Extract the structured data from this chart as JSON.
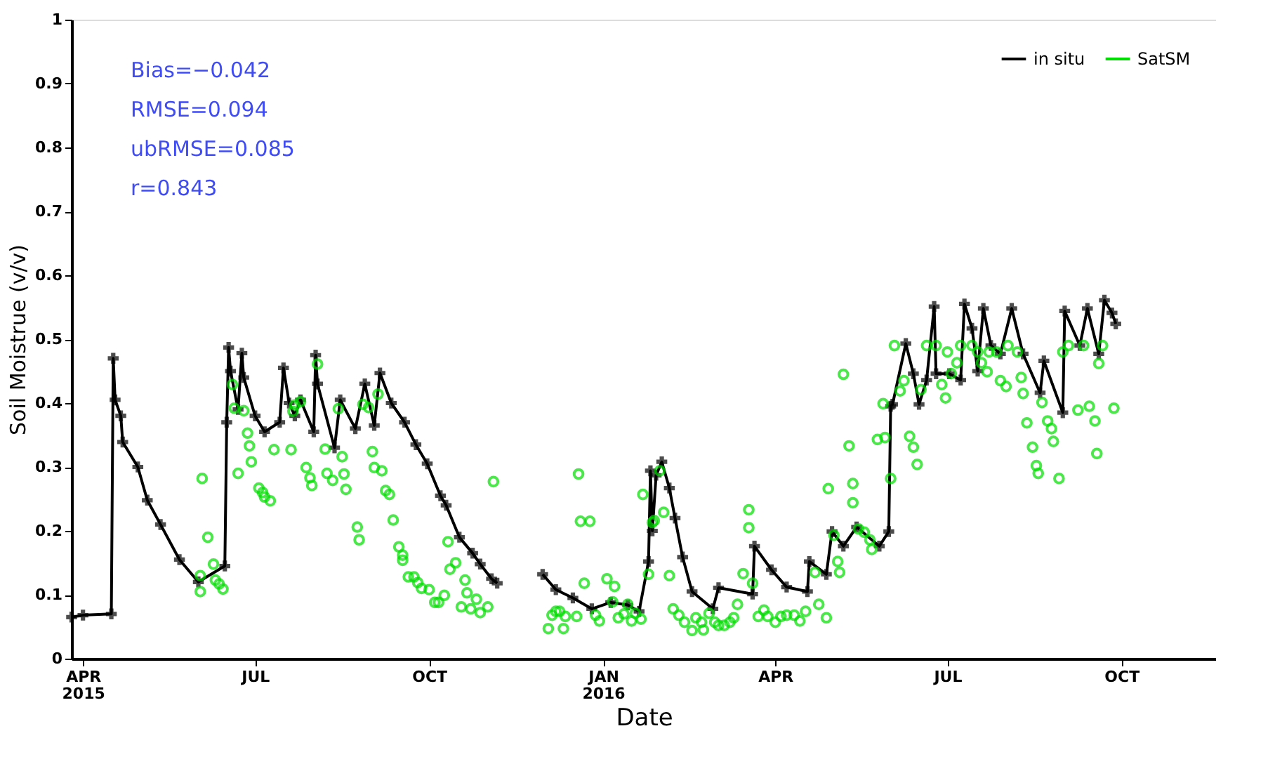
{
  "chart_data": {
    "type": "line",
    "xlabel": "Date",
    "ylabel": "Soil Moistrue (v/v)",
    "xlim": [
      "2015-03-26",
      "2016-11-20"
    ],
    "xticks": [
      {
        "value": "2015-04-01",
        "label": "APR 2015"
      },
      {
        "value": "2015-07-01",
        "label": "JUL"
      },
      {
        "value": "2015-10-01",
        "label": "OCT"
      },
      {
        "value": "2016-01-01",
        "label": "JAN 2016"
      },
      {
        "value": "2016-04-01",
        "label": "APR"
      },
      {
        "value": "2016-07-01",
        "label": "JUL"
      },
      {
        "value": "2016-10-01",
        "label": "OCT"
      }
    ],
    "ylim": [
      0,
      1
    ],
    "yticks": [
      0,
      0.1,
      0.2,
      0.3,
      0.4,
      0.5,
      0.6,
      0.7,
      0.8,
      0.9,
      1
    ],
    "grid": false,
    "legend": "top right",
    "annotations": [
      "Bias=−0.042",
      "RMSE=0.094",
      "ubRMSE=0.085",
      "r=0.843"
    ],
    "series": [
      {
        "name": "in situ",
        "color": "#000000",
        "marker": "cross",
        "line_style": "solid",
        "x": [
          "2015-03-26",
          "2015-04-01",
          "2015-04-16",
          "2015-04-17",
          "2015-04-18",
          "2015-04-21",
          "2015-04-22",
          "2015-04-30",
          "2015-05-05",
          "2015-05-12",
          "2015-05-22",
          "2015-06-01",
          "2015-06-15",
          "2015-06-16",
          "2015-06-17",
          "2015-06-18",
          "2015-06-22",
          "2015-06-24",
          "2015-06-25",
          "2015-07-01",
          "2015-07-06",
          "2015-07-14",
          "2015-07-16",
          "2015-07-19",
          "2015-07-22",
          "2015-07-25",
          "2015-08-01",
          "2015-08-02",
          "2015-08-03",
          "2015-08-12",
          "2015-08-15",
          "2015-08-23",
          "2015-08-28",
          "2015-09-02",
          "2015-09-05",
          "2015-09-11",
          "2015-09-18",
          "2015-09-24",
          "2015-09-30",
          "2015-10-07",
          "2015-10-10",
          "2015-10-17",
          "2015-10-24",
          "2015-10-28",
          "2015-11-03",
          "2015-11-06",
          "2015-11-18",
          "2015-11-30",
          "2015-12-07",
          "2015-12-16",
          "2015-12-26",
          "2016-01-05",
          "2016-01-14",
          "2016-01-20",
          "2016-01-25",
          "2016-01-26",
          "2016-01-27",
          "2016-01-29",
          "2016-02-01",
          "2016-02-05",
          "2016-02-08",
          "2016-02-12",
          "2016-02-17",
          "2016-02-28",
          "2016-03-02",
          "2016-03-20",
          "2016-03-21",
          "2016-03-30",
          "2016-04-07",
          "2016-04-18",
          "2016-04-19",
          "2016-04-28",
          "2016-05-01",
          "2016-05-07",
          "2016-05-14",
          "2016-05-26",
          "2016-05-31",
          "2016-06-01",
          "2016-06-02",
          "2016-06-09",
          "2016-06-13",
          "2016-06-16",
          "2016-06-20",
          "2016-06-24",
          "2016-06-25",
          "2016-07-02",
          "2016-07-08",
          "2016-07-10",
          "2016-07-14",
          "2016-07-17",
          "2016-07-20",
          "2016-07-24",
          "2016-07-29",
          "2016-08-04",
          "2016-08-10",
          "2016-08-19",
          "2016-08-21",
          "2016-08-31",
          "2016-09-01",
          "2016-09-09",
          "2016-09-13",
          "2016-09-19",
          "2016-09-22",
          "2016-09-26",
          "2016-09-28"
        ],
        "values": [
          0.065,
          0.068,
          0.07,
          0.47,
          0.405,
          0.38,
          0.339,
          0.3,
          0.248,
          0.21,
          0.155,
          0.12,
          0.145,
          0.37,
          0.487,
          0.45,
          0.39,
          0.478,
          0.44,
          0.38,
          0.355,
          0.37,
          0.455,
          0.4,
          0.38,
          0.405,
          0.355,
          0.475,
          0.43,
          0.33,
          0.405,
          0.36,
          0.43,
          0.365,
          0.447,
          0.4,
          0.37,
          0.335,
          0.305,
          0.255,
          0.24,
          0.19,
          0.165,
          0.148,
          0.125,
          0.118,
          null,
          0.132,
          0.108,
          0.095,
          0.078,
          0.088,
          0.084,
          0.074,
          0.152,
          0.294,
          0.2,
          0.287,
          0.308,
          0.267,
          0.22,
          0.159,
          0.105,
          0.078,
          0.111,
          0.101,
          0.176,
          0.139,
          0.112,
          0.105,
          0.152,
          0.132,
          0.199,
          0.176,
          0.206,
          0.176,
          0.199,
          0.395,
          0.398,
          0.493,
          0.446,
          0.398,
          0.436,
          0.551,
          0.446,
          0.446,
          0.436,
          0.555,
          0.517,
          0.45,
          0.548,
          0.49,
          0.477,
          0.548,
          0.477,
          0.416,
          0.466,
          0.385,
          0.544,
          0.49,
          0.548,
          0.477,
          0.561,
          0.541,
          0.524
        ]
      },
      {
        "name": "SatSM",
        "type": "scatter",
        "color": "#00dd00",
        "marker": "circle",
        "x": [
          "2015-06-02",
          "2015-06-02",
          "2015-06-03",
          "2015-06-06",
          "2015-06-09",
          "2015-06-10",
          "2015-06-12",
          "2015-06-14",
          "2015-06-19",
          "2015-06-20",
          "2015-06-22",
          "2015-06-25",
          "2015-06-27",
          "2015-06-28",
          "2015-06-29",
          "2015-07-03",
          "2015-07-05",
          "2015-07-06",
          "2015-07-09",
          "2015-07-11",
          "2015-07-20",
          "2015-07-21",
          "2015-07-22",
          "2015-07-25",
          "2015-07-28",
          "2015-07-30",
          "2015-07-31",
          "2015-08-03",
          "2015-08-07",
          "2015-08-08",
          "2015-08-11",
          "2015-08-14",
          "2015-08-16",
          "2015-08-17",
          "2015-08-18",
          "2015-08-24",
          "2015-08-25",
          "2015-08-27",
          "2015-08-30",
          "2015-09-01",
          "2015-09-02",
          "2015-09-04",
          "2015-09-06",
          "2015-09-08",
          "2015-09-10",
          "2015-09-12",
          "2015-09-15",
          "2015-09-17",
          "2015-09-17",
          "2015-09-20",
          "2015-09-23",
          "2015-09-25",
          "2015-09-27",
          "2015-10-01",
          "2015-10-04",
          "2015-10-06",
          "2015-10-09",
          "2015-10-11",
          "2015-10-12",
          "2015-10-15",
          "2015-10-18",
          "2015-10-20",
          "2015-10-21",
          "2015-10-23",
          "2015-10-26",
          "2015-10-28",
          "2015-11-01",
          "2015-11-04",
          "2015-12-03",
          "2015-12-05",
          "2015-12-07",
          "2015-12-09",
          "2015-12-11",
          "2015-12-12",
          "2015-12-18",
          "2015-12-19",
          "2015-12-20",
          "2015-12-22",
          "2015-12-25",
          "2015-12-28",
          "2015-12-30",
          "2016-01-03",
          "2016-01-06",
          "2016-01-07",
          "2016-01-09",
          "2016-01-12",
          "2016-01-14",
          "2016-01-16",
          "2016-01-18",
          "2016-01-21",
          "2016-01-22",
          "2016-01-25",
          "2016-01-27",
          "2016-01-28",
          "2016-01-31",
          "2016-02-02",
          "2016-02-05",
          "2016-02-07",
          "2016-02-10",
          "2016-02-13",
          "2016-02-17",
          "2016-02-19",
          "2016-02-22",
          "2016-02-23",
          "2016-02-26",
          "2016-02-29",
          "2016-03-02",
          "2016-03-05",
          "2016-03-08",
          "2016-03-10",
          "2016-03-12",
          "2016-03-15",
          "2016-03-18",
          "2016-03-18",
          "2016-03-20",
          "2016-03-23",
          "2016-03-26",
          "2016-03-28",
          "2016-04-01",
          "2016-04-04",
          "2016-04-07",
          "2016-04-11",
          "2016-04-14",
          "2016-04-17",
          "2016-04-22",
          "2016-04-24",
          "2016-04-28",
          "2016-04-29",
          "2016-05-02",
          "2016-05-04",
          "2016-05-05",
          "2016-05-07",
          "2016-05-10",
          "2016-05-12",
          "2016-05-12",
          "2016-05-15",
          "2016-05-18",
          "2016-05-21",
          "2016-05-22",
          "2016-05-25",
          "2016-05-28",
          "2016-05-29",
          "2016-06-01",
          "2016-06-03",
          "2016-06-06",
          "2016-06-08",
          "2016-06-11",
          "2016-06-13",
          "2016-06-15",
          "2016-06-17",
          "2016-06-20",
          "2016-06-25",
          "2016-06-28",
          "2016-06-30",
          "2016-07-01",
          "2016-07-03",
          "2016-07-06",
          "2016-07-08",
          "2016-07-14",
          "2016-07-17",
          "2016-07-19",
          "2016-07-22",
          "2016-07-23",
          "2016-07-27",
          "2016-07-29",
          "2016-08-01",
          "2016-08-02",
          "2016-08-07",
          "2016-08-09",
          "2016-08-10",
          "2016-08-12",
          "2016-08-15",
          "2016-08-17",
          "2016-08-18",
          "2016-08-20",
          "2016-08-23",
          "2016-08-25",
          "2016-08-26",
          "2016-08-29",
          "2016-08-31",
          "2016-09-03",
          "2016-09-08",
          "2016-09-11",
          "2016-09-14",
          "2016-09-17",
          "2016-09-18",
          "2016-09-19",
          "2016-09-21",
          "2016-09-27"
        ],
        "values": [
          0.13,
          0.105,
          0.282,
          0.19,
          0.148,
          0.123,
          0.117,
          0.109,
          0.429,
          0.392,
          0.29,
          0.388,
          0.353,
          0.333,
          0.308,
          0.267,
          0.26,
          0.253,
          0.247,
          0.327,
          0.327,
          0.387,
          0.397,
          0.402,
          0.299,
          0.283,
          0.271,
          0.461,
          0.328,
          0.29,
          0.279,
          0.391,
          0.316,
          0.289,
          0.265,
          0.206,
          0.186,
          0.398,
          0.393,
          0.324,
          0.299,
          0.414,
          0.294,
          0.263,
          0.257,
          0.217,
          0.175,
          0.162,
          0.154,
          0.128,
          0.128,
          0.119,
          0.11,
          0.108,
          0.088,
          0.088,
          0.099,
          0.183,
          0.14,
          0.15,
          0.081,
          0.123,
          0.103,
          0.078,
          0.093,
          0.072,
          0.081,
          0.277,
          0.047,
          0.068,
          0.074,
          0.074,
          0.047,
          0.066,
          0.066,
          0.289,
          0.215,
          0.118,
          0.215,
          0.068,
          0.059,
          0.125,
          0.089,
          0.113,
          0.064,
          0.07,
          0.085,
          0.059,
          0.071,
          0.062,
          0.257,
          0.132,
          0.213,
          0.216,
          0.294,
          0.229,
          0.13,
          0.078,
          0.068,
          0.057,
          0.044,
          0.064,
          0.057,
          0.045,
          0.071,
          0.057,
          0.052,
          0.052,
          0.057,
          0.064,
          0.085,
          0.133,
          0.233,
          0.205,
          0.118,
          0.066,
          0.076,
          0.066,
          0.057,
          0.066,
          0.068,
          0.068,
          0.059,
          0.074,
          0.135,
          0.085,
          0.064,
          0.266,
          0.193,
          0.152,
          0.135,
          0.445,
          0.333,
          0.274,
          0.244,
          0.203,
          0.198,
          0.186,
          0.171,
          0.343,
          0.399,
          0.346,
          0.282,
          0.49,
          0.419,
          0.435,
          0.348,
          0.331,
          0.304,
          0.421,
          0.49,
          0.49,
          0.429,
          0.408,
          0.48,
          0.446,
          0.463,
          0.49,
          0.49,
          0.48,
          0.463,
          0.449,
          0.48,
          0.48,
          0.435,
          0.426,
          0.49,
          0.48,
          0.44,
          0.415,
          0.369,
          0.331,
          0.302,
          0.29,
          0.401,
          0.372,
          0.36,
          0.34,
          0.282,
          0.48,
          0.49,
          0.389,
          0.49,
          0.395,
          0.372,
          0.321,
          0.462,
          0.49,
          0.392
        ]
      }
    ]
  }
}
